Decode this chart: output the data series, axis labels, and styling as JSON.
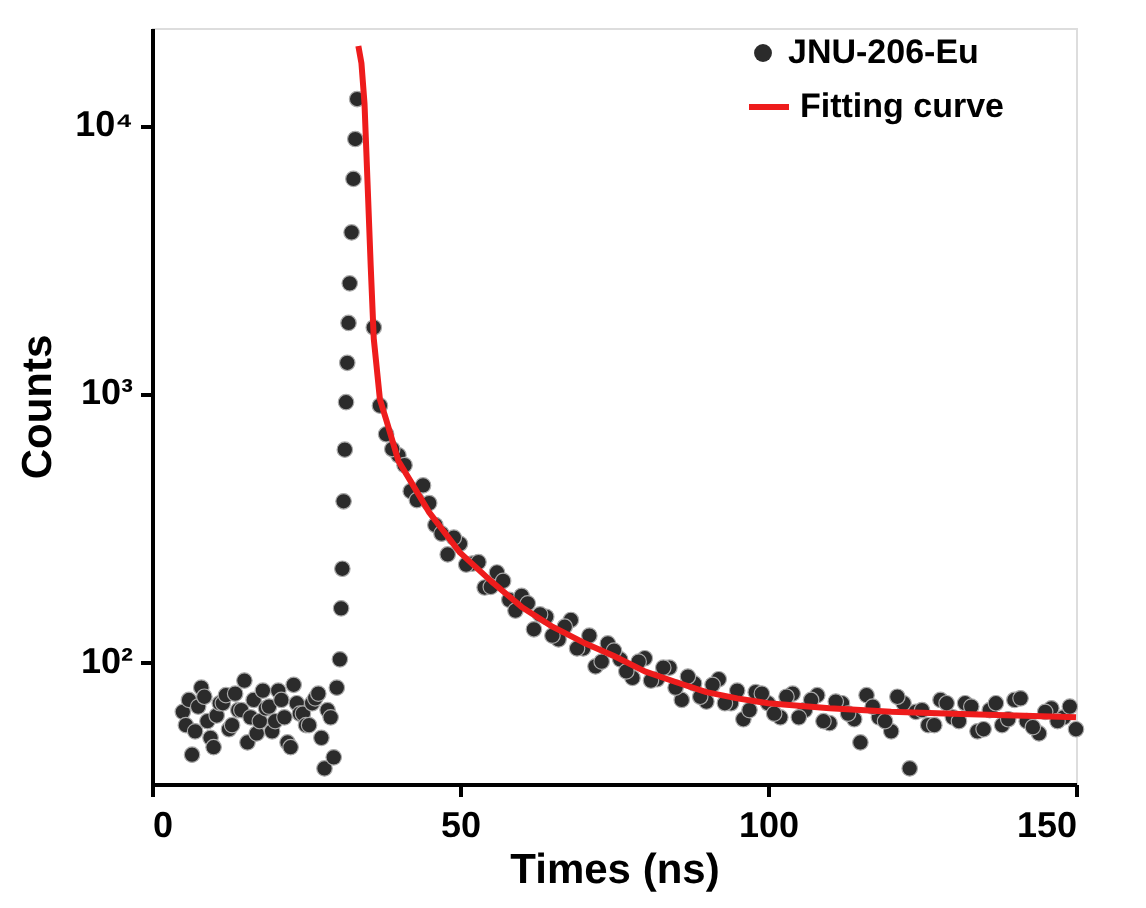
{
  "chart_data": {
    "type": "scatter",
    "xlabel": "Times (ns)",
    "ylabel": "Counts",
    "log": "y",
    "xlim": [
      0,
      150
    ],
    "xticks": [
      0,
      50,
      100,
      150
    ],
    "ylim": [
      35,
      23000
    ],
    "yticks": [
      {
        "value": 100,
        "label": "10²"
      },
      {
        "value": 1000,
        "label": "10³"
      },
      {
        "value": 10000,
        "label": "10⁴"
      }
    ],
    "legend": "top right",
    "series": [
      {
        "name": "JNU-206-Eu",
        "marker": "circle",
        "color": "#2b2b2b",
        "x": [
          5,
          5.5,
          6,
          6.5,
          7,
          7.5,
          8,
          8.5,
          9,
          9.5,
          10,
          10.5,
          11,
          11.5,
          12,
          12.5,
          13,
          13.5,
          14,
          14.5,
          15,
          15.5,
          16,
          16.5,
          17,
          17.5,
          18,
          18.5,
          19,
          19.5,
          20,
          20.5,
          21,
          21.5,
          22,
          22.5,
          23,
          23.5,
          24,
          24.5,
          25,
          25.5,
          26,
          26.5,
          27,
          27.5,
          28,
          28.5,
          29,
          29.5,
          30,
          30.5,
          30.7,
          30.9,
          31.1,
          31.3,
          31.5,
          31.7,
          31.9,
          32.1,
          32.4,
          32.7,
          33,
          33.3,
          36,
          38,
          40,
          42,
          44,
          46,
          48,
          50,
          52,
          54,
          56,
          58,
          60,
          62,
          64,
          66,
          68,
          70,
          72,
          74,
          76,
          78,
          80,
          82,
          84,
          86,
          88,
          90,
          92,
          94,
          96,
          98,
          100,
          102,
          104,
          106,
          108,
          110,
          112,
          114,
          116,
          118,
          120,
          122,
          124,
          126,
          128,
          130,
          132,
          134,
          136,
          138,
          140,
          142,
          144,
          146,
          148,
          150,
          37,
          39,
          41,
          43,
          45,
          47,
          49,
          51,
          53,
          55,
          57,
          59,
          61,
          63,
          65,
          67,
          69,
          71,
          73,
          75,
          77,
          79,
          81,
          83,
          85,
          87,
          89,
          91,
          93,
          95,
          97,
          99,
          101,
          103,
          105,
          107,
          109,
          111,
          113,
          115,
          117,
          119,
          121,
          123,
          125,
          127,
          129,
          131,
          133,
          135,
          137,
          139,
          141,
          143,
          145,
          147,
          149
        ],
        "values": [
          65,
          58,
          72,
          45,
          55,
          68,
          80,
          74,
          60,
          52,
          48,
          63,
          70,
          70,
          75,
          56,
          58,
          76,
          66,
          66,
          85,
          50,
          62,
          72,
          54,
          60,
          78,
          67,
          68,
          55,
          60,
          78,
          72,
          62,
          50,
          48,
          82,
          70,
          64,
          64,
          58,
          58,
          70,
          73,
          76,
          52,
          40,
          66,
          62,
          44,
          80,
          102,
          158,
          222,
          396,
          617,
          927,
          1300,
          1830,
          2570,
          3980,
          6300,
          8870,
          12500,
          1760,
          704,
          588,
          432,
          454,
          323,
          251,
          275,
          232,
          189,
          215,
          170,
          176,
          132,
          147,
          121,
          143,
          112,
          96,
          117,
          102,
          87,
          103,
          86,
          95,
          72,
          83,
          71,
          86,
          70,
          61,
          77,
          70,
          62,
          76,
          66,
          75,
          59,
          70,
          61,
          75,
          62,
          55,
          70,
          65,
          58,
          72,
          62,
          70,
          55,
          66,
          58,
          72,
          60,
          54,
          67,
          62,
          56,
          900,
          620,
          540,
          400,
          390,
          300,
          290,
          230,
          235,
          190,
          200,
          155,
          165,
          150,
          125,
          135,
          112,
          125,
          100,
          110,
          92,
          100,
          85,
          95,
          80,
          88,
          74,
          82,
          70,
          78,
          66,
          76,
          64,
          74,
          62,
          72,
          60,
          71,
          64,
          50,
          68,
          60,
          74,
          40,
          66,
          58,
          70,
          60,
          68,
          56,
          70,
          61,
          73,
          57,
          65,
          60,
          68
        ]
      },
      {
        "name": "Fitting curve",
        "type": "line",
        "color": "#ee1c1c",
        "x": [
          33.5,
          34,
          34.5,
          35,
          35.5,
          36,
          37,
          38,
          40,
          42,
          45,
          50,
          55,
          60,
          65,
          70,
          75,
          80,
          85,
          90,
          95,
          100,
          110,
          120,
          130,
          140,
          150
        ],
        "values": [
          19700,
          17000,
          12000,
          6000,
          3000,
          1600,
          950,
          800,
          560,
          470,
          360,
          255,
          200,
          160,
          135,
          118,
          105,
          92,
          84,
          77,
          73,
          70,
          67,
          65,
          64,
          63,
          62
        ]
      }
    ]
  }
}
